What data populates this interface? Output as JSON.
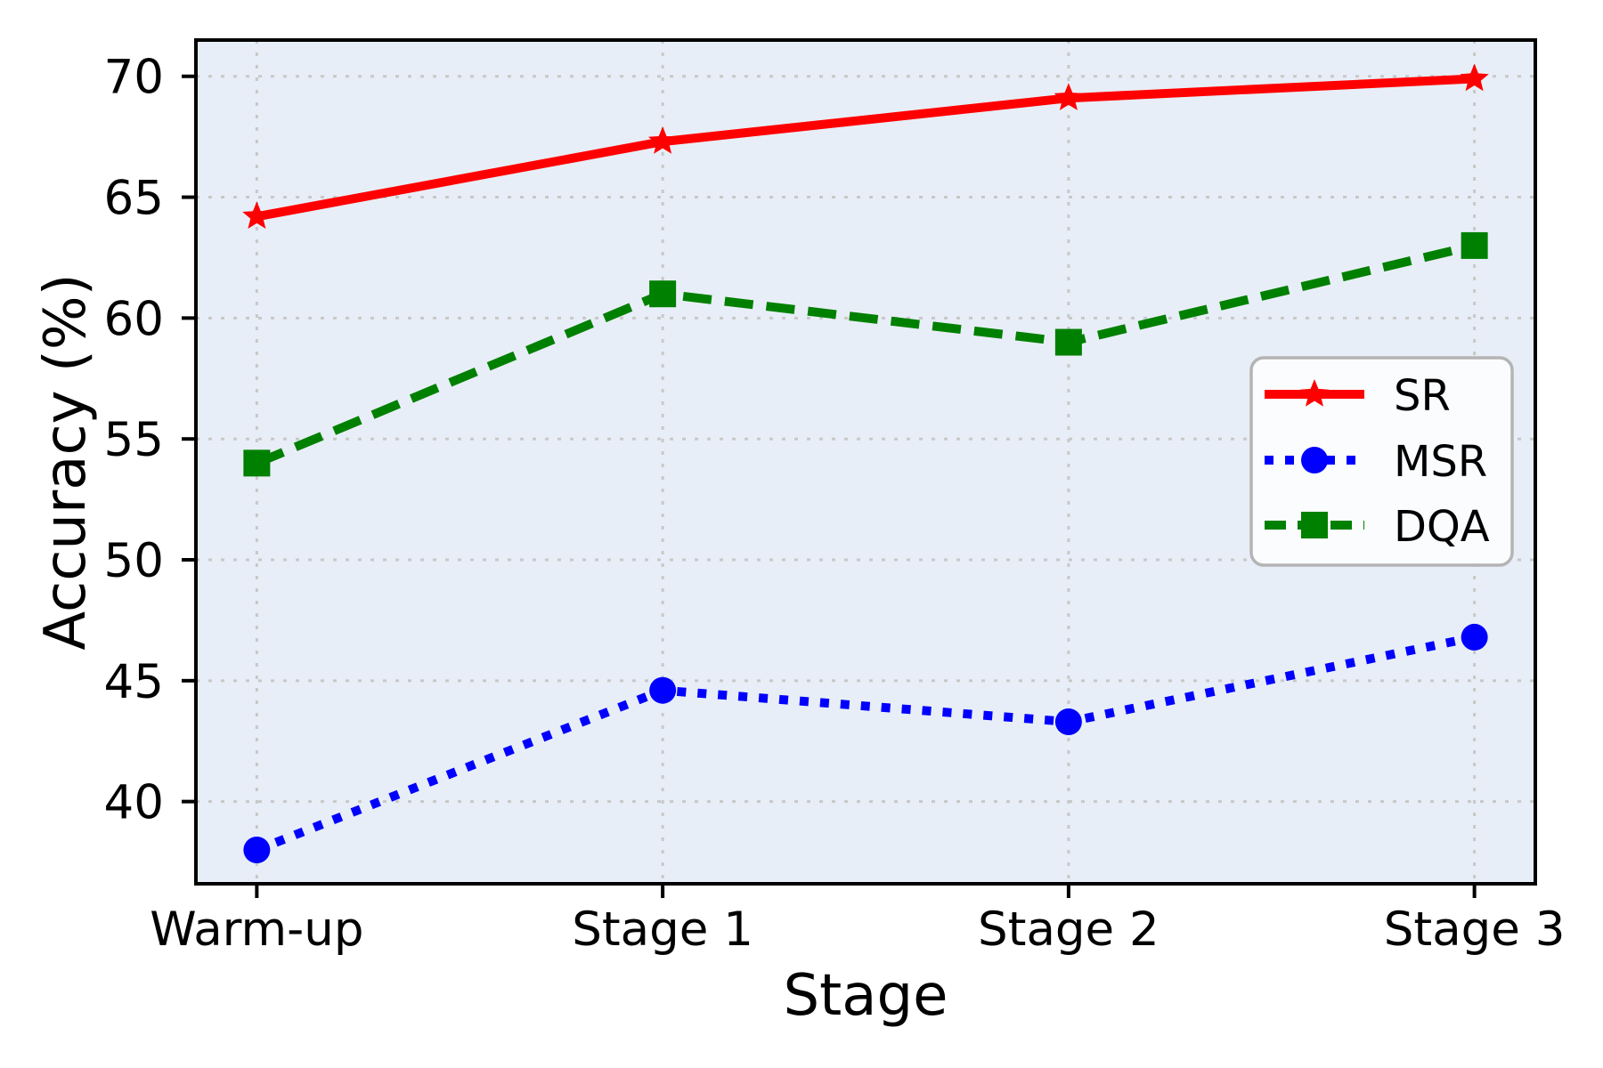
{
  "figure": {
    "background_color": "#ffffff"
  },
  "chart_data": {
    "type": "line",
    "title": "",
    "xlabel": "Stage",
    "ylabel": "Accuracy (%)",
    "categories": [
      "Warm-up",
      "Stage 1",
      "Stage 2",
      "Stage 3"
    ],
    "series": [
      {
        "name": "SR",
        "values": [
          64.2,
          67.3,
          69.1,
          69.9
        ],
        "color": "#ff0000",
        "line_style": "solid",
        "marker": "star"
      },
      {
        "name": "MSR",
        "values": [
          38.0,
          44.6,
          43.3,
          46.8
        ],
        "color": "#0000ff",
        "line_style": "dotted",
        "marker": "circle"
      },
      {
        "name": "DQA",
        "values": [
          54.0,
          61.0,
          59.0,
          63.0
        ],
        "color": "#008000",
        "line_style": "dashed",
        "marker": "square"
      }
    ],
    "yticks": [
      40,
      45,
      50,
      55,
      60,
      65,
      70
    ],
    "ylim": [
      36.6,
      71.5
    ],
    "grid": true,
    "legend": {
      "position": "center-right",
      "entries": [
        "SR",
        "MSR",
        "DQA"
      ]
    },
    "plot_bg_color": "#e8eef7",
    "grid_color": "#c8c8c8",
    "axis_color": "#000000",
    "legend_bg_color": "#fbfcfe",
    "legend_border_color": "#b4b4b4"
  }
}
